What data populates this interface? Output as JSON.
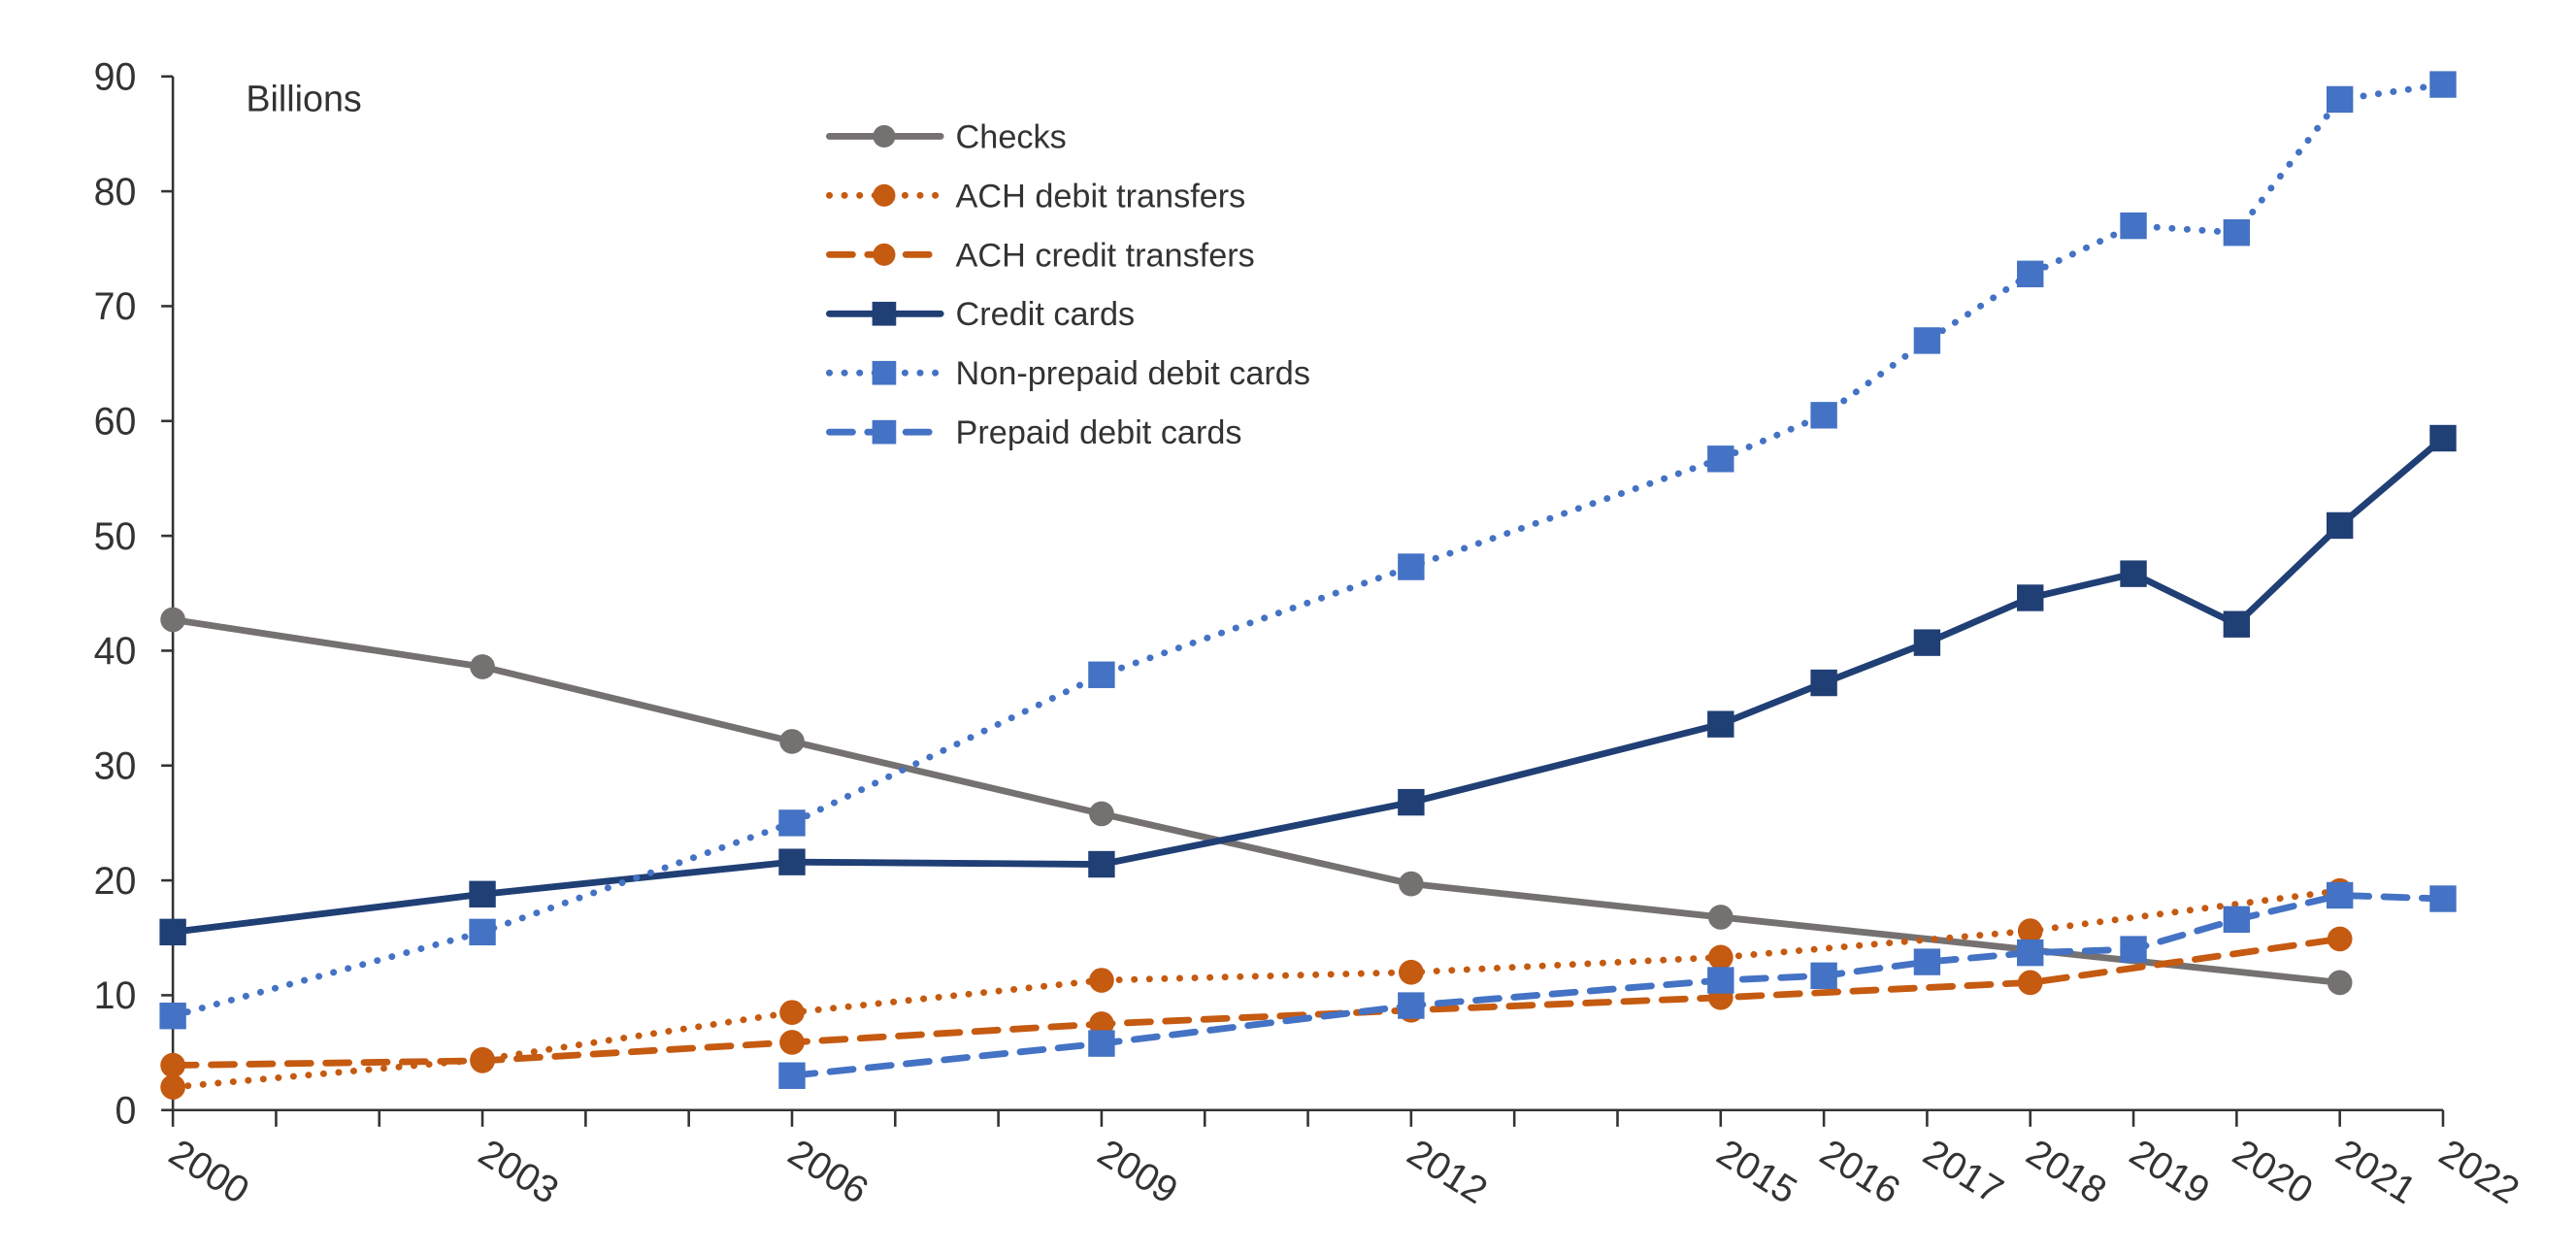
{
  "chart_data": {
    "type": "line",
    "title": "",
    "ylabel": "Billions",
    "xlabel": "",
    "ylim": [
      0,
      90
    ],
    "yticks": [
      0,
      10,
      20,
      30,
      40,
      50,
      60,
      70,
      80,
      90
    ],
    "xlim": [
      2000,
      2022
    ],
    "xtick_labels": [
      "2000",
      "2003",
      "2006",
      "2009",
      "2012",
      "2015",
      "2016",
      "2017",
      "2018",
      "2019",
      "2020",
      "2021",
      "2022"
    ],
    "grid": false,
    "legend_position": "top-center",
    "series": [
      {
        "name": "Checks",
        "color": "#767171",
        "dash": "solid",
        "marker": "circle",
        "x": [
          2000,
          2003,
          2006,
          2009,
          2012,
          2015,
          2021
        ],
        "values": [
          42.7,
          38.6,
          32.1,
          25.8,
          19.7,
          16.8,
          11.1
        ]
      },
      {
        "name": "ACH debit transfers",
        "color": "#C55A11",
        "dash": "dot",
        "marker": "circle",
        "x": [
          2000,
          2003,
          2006,
          2009,
          2012,
          2015,
          2018,
          2021
        ],
        "values": [
          2.0,
          4.4,
          8.5,
          11.3,
          12.0,
          13.3,
          15.6,
          19.1
        ]
      },
      {
        "name": "ACH credit transfers",
        "color": "#C55A11",
        "dash": "dash",
        "marker": "circle",
        "x": [
          2000,
          2003,
          2006,
          2009,
          2012,
          2015,
          2018,
          2021
        ],
        "values": [
          3.9,
          4.3,
          5.9,
          7.5,
          8.7,
          9.8,
          11.1,
          14.9
        ]
      },
      {
        "name": "Credit cards",
        "color": "#203F75",
        "dash": "solid",
        "marker": "square",
        "x": [
          2000,
          2003,
          2006,
          2009,
          2012,
          2015,
          2016,
          2017,
          2018,
          2019,
          2020,
          2021,
          2022
        ],
        "values": [
          15.5,
          18.8,
          21.6,
          21.4,
          26.8,
          33.6,
          37.2,
          40.7,
          44.6,
          46.7,
          42.3,
          50.9,
          58.5
        ]
      },
      {
        "name": "Non-prepaid debit cards",
        "color": "#4472C4",
        "dash": "dot",
        "marker": "square",
        "x": [
          2000,
          2003,
          2006,
          2009,
          2012,
          2015,
          2016,
          2017,
          2018,
          2019,
          2020,
          2021,
          2022
        ],
        "values": [
          8.2,
          15.5,
          25.0,
          37.9,
          47.3,
          56.7,
          60.5,
          67.0,
          72.8,
          77.0,
          76.4,
          88.0,
          89.3
        ]
      },
      {
        "name": "Prepaid debit cards",
        "color": "#4472C4",
        "dash": "dash",
        "marker": "square",
        "x": [
          2006,
          2009,
          2012,
          2015,
          2016,
          2017,
          2018,
          2019,
          2020,
          2021,
          2022
        ],
        "values": [
          3.0,
          5.8,
          9.1,
          11.3,
          11.7,
          12.9,
          13.7,
          14.0,
          16.6,
          18.7,
          18.4
        ]
      }
    ]
  }
}
